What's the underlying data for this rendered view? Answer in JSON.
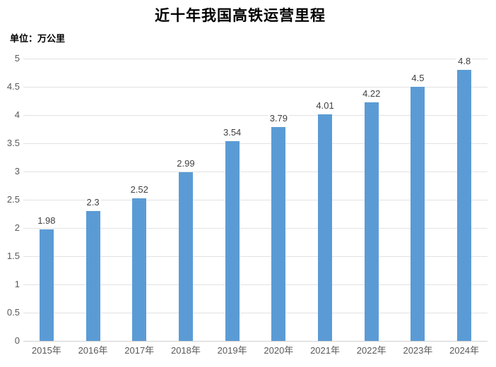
{
  "chart_data": {
    "type": "bar",
    "title": "近十年我国高铁运营里程",
    "unit_label": "单位：万公里",
    "categories": [
      "2015年",
      "2016年",
      "2017年",
      "2018年",
      "2019年",
      "2020年",
      "2021年",
      "2022年",
      "2023年",
      "2024年"
    ],
    "values": [
      1.98,
      2.3,
      2.52,
      2.99,
      3.54,
      3.79,
      4.01,
      4.22,
      4.5,
      4.8
    ],
    "value_labels": [
      "1.98",
      "2.3",
      "2.52",
      "2.99",
      "3.54",
      "3.79",
      "4.01",
      "4.22",
      "4.5",
      "4.8"
    ],
    "xlabel": "",
    "ylabel": "",
    "ylim": [
      0,
      5
    ],
    "y_ticks": [
      0,
      0.5,
      1,
      1.5,
      2,
      2.5,
      3,
      3.5,
      4,
      4.5,
      5
    ],
    "y_tick_labels": [
      "0",
      "0.5",
      "1",
      "1.5",
      "2",
      "2.5",
      "3",
      "3.5",
      "4",
      "4.5",
      "5"
    ],
    "grid": "horizontal",
    "legend": "none",
    "data_labels": "above-bars",
    "colors": {
      "bar": "#5b9bd5",
      "gridline": "#e2e2e2",
      "axis_line": "#d0d0d0",
      "axis_label": "#595959",
      "data_label": "#404040",
      "title": "#000000",
      "background": "#ffffff"
    }
  }
}
